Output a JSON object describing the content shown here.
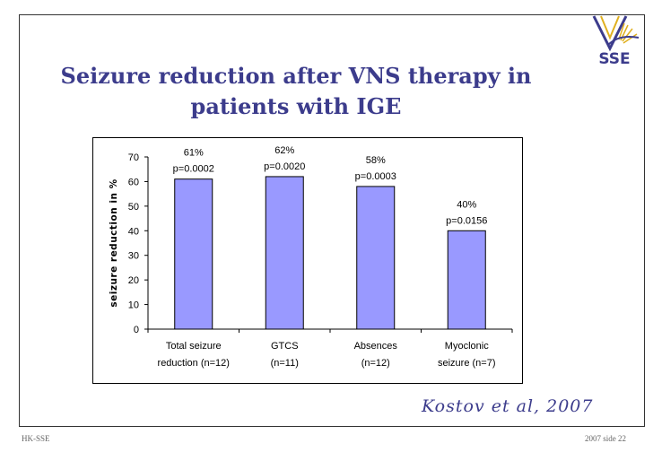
{
  "slide": {
    "title": "Seizure reduction after VNS therapy in patients with IGE",
    "citation": "Kostov et al, 2007",
    "footer_left": "HK-SSE",
    "footer_right": "2007 side 22",
    "logo_text": "SSE",
    "accent_color": "#3c3c8c"
  },
  "chart_data": {
    "type": "bar",
    "ylabel": "seizure reduction in %",
    "ylim": [
      0,
      70
    ],
    "yticks": [
      0,
      10,
      20,
      30,
      40,
      50,
      60,
      70
    ],
    "grid": false,
    "bar_color": "#9999ff",
    "categories": [
      [
        "Total seizure",
        "reduction (n=12)"
      ],
      [
        "GTCS",
        "(n=11)"
      ],
      [
        "Absences",
        "(n=12)"
      ],
      [
        "Myoclonic",
        "seizure (n=7)"
      ]
    ],
    "values": [
      61,
      62,
      58,
      40
    ],
    "data_labels": [
      [
        "61%",
        "p=0.0002"
      ],
      [
        "62%",
        "p=0.0020"
      ],
      [
        "58%",
        "p=0.0003"
      ],
      [
        "40%",
        "p=0.0156"
      ]
    ]
  }
}
